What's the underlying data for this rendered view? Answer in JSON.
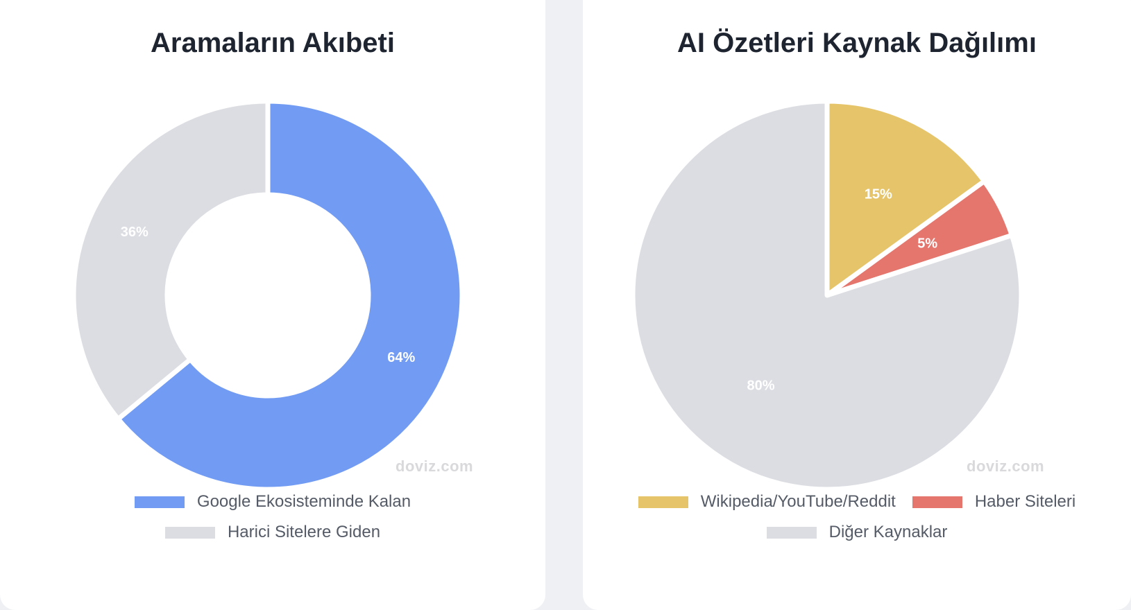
{
  "watermark": "doviz.com",
  "colors": {
    "blue": "#729cf3",
    "gray": "#dcdde2",
    "yellow": "#e6c56a",
    "red": "#e4766e"
  },
  "chart_data": [
    {
      "type": "doughnut",
      "title": "Aramaların Akıbeti",
      "categories": [
        "Google Ekosisteminde Kalan",
        "Harici Sitelere Giden"
      ],
      "values": [
        64,
        36
      ],
      "labels": [
        "64%",
        "36%"
      ],
      "colors": [
        "#729cf3",
        "#dcdde2"
      ],
      "legend": "bottom"
    },
    {
      "type": "pie",
      "title": "AI Özetleri Kaynak Dağılımı",
      "categories": [
        "Wikipedia/YouTube/Reddit",
        "Haber Siteleri",
        "Diğer Kaynaklar"
      ],
      "values": [
        15,
        5,
        80
      ],
      "labels": [
        "15%",
        "5%",
        "80%"
      ],
      "colors": [
        "#e6c56a",
        "#e4766e",
        "#dcdde2"
      ],
      "legend": "bottom"
    }
  ]
}
